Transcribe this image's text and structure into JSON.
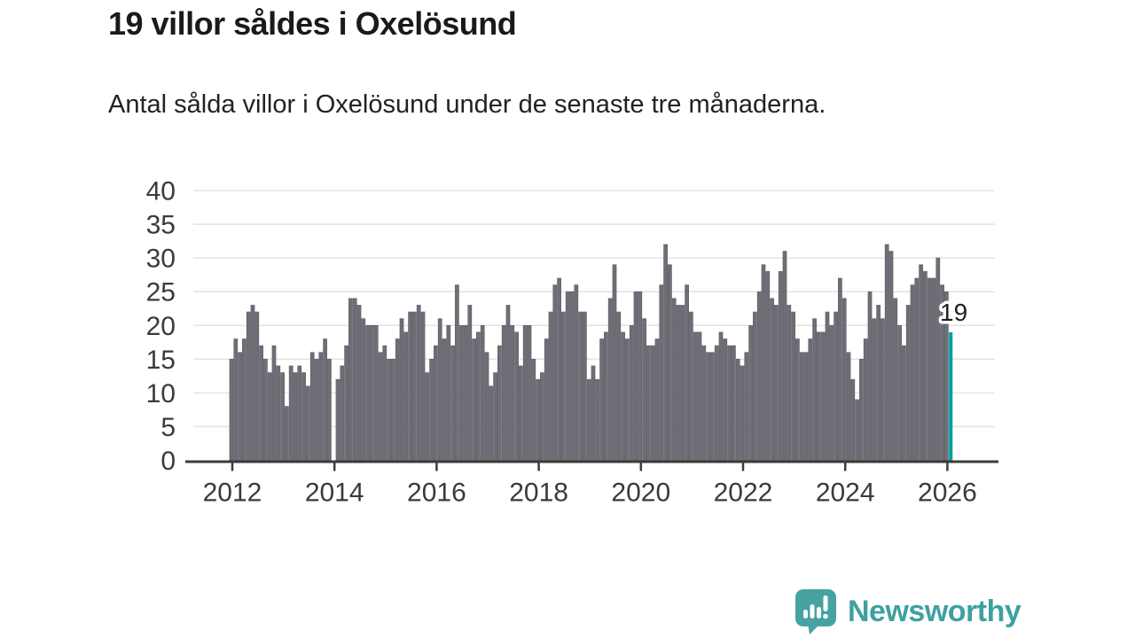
{
  "page": {
    "background": "#ffffff"
  },
  "header": {
    "title": "19 villor såldes i Oxelösund",
    "subtitle": "Antal sålda villor i Oxelösund under de senaste tre månaderna."
  },
  "chart_data": {
    "type": "bar",
    "title": "19 villor såldes i Oxelösund",
    "subtitle": "Antal sålda villor i Oxelösund under de senaste tre månaderna.",
    "xlabel": "",
    "ylabel": "",
    "unit_frequency": "monthly",
    "x_start": "2012-01",
    "x_end": "2026-02",
    "values": [
      15,
      18,
      16,
      18,
      22,
      23,
      22,
      17,
      15,
      13,
      17,
      14,
      13,
      8,
      14,
      13,
      14,
      13,
      11,
      16,
      15,
      16,
      18,
      15,
      0,
      12,
      14,
      17,
      24,
      24,
      23,
      21,
      20,
      20,
      20,
      16,
      17,
      15,
      15,
      18,
      21,
      19,
      22,
      22,
      23,
      22,
      13,
      15,
      17,
      21,
      18,
      20,
      17,
      26,
      20,
      20,
      23,
      18,
      19,
      20,
      16,
      11,
      13,
      17,
      20,
      23,
      20,
      19,
      14,
      20,
      20,
      15,
      12,
      13,
      18,
      22,
      26,
      27,
      22,
      25,
      25,
      26,
      22,
      22,
      12,
      14,
      12,
      18,
      19,
      24,
      29,
      22,
      19,
      18,
      20,
      25,
      25,
      21,
      17,
      17,
      18,
      26,
      32,
      29,
      24,
      23,
      23,
      26,
      22,
      19,
      19,
      17,
      16,
      16,
      17,
      19,
      18,
      17,
      17,
      15,
      14,
      16,
      20,
      22,
      25,
      29,
      28,
      24,
      23,
      28,
      31,
      23,
      22,
      18,
      16,
      16,
      18,
      21,
      19,
      19,
      22,
      20,
      22,
      27,
      24,
      16,
      12,
      9,
      15,
      18,
      25,
      21,
      23,
      21,
      32,
      31,
      24,
      20,
      17,
      23,
      26,
      27,
      29,
      28,
      27,
      27,
      30,
      26,
      25,
      19
    ],
    "last_value": 19,
    "annotation": {
      "text": "19",
      "target": "last-bar"
    },
    "ylim": [
      0,
      40
    ],
    "yticks": [
      0,
      5,
      10,
      15,
      20,
      25,
      30,
      35,
      40
    ],
    "xticks": [
      2012,
      2014,
      2016,
      2018,
      2020,
      2022,
      2024,
      2026
    ],
    "grid": true,
    "legend": false,
    "bar_color": "#6f6e77",
    "bar_edge_color": "#5d5c65",
    "highlight_last_color": "#00a0a1",
    "gridline_color": "#e4e4e4",
    "axis_color": "#3c3c3c",
    "tick_label_color": "#3a3a3a",
    "annotation_text_color": "#1f1f1f"
  },
  "footer": {
    "brand": "Newsworthy",
    "brand_color": "#3fa0a0",
    "logo_icon": "bar-chart-speech-bubble-icon"
  }
}
